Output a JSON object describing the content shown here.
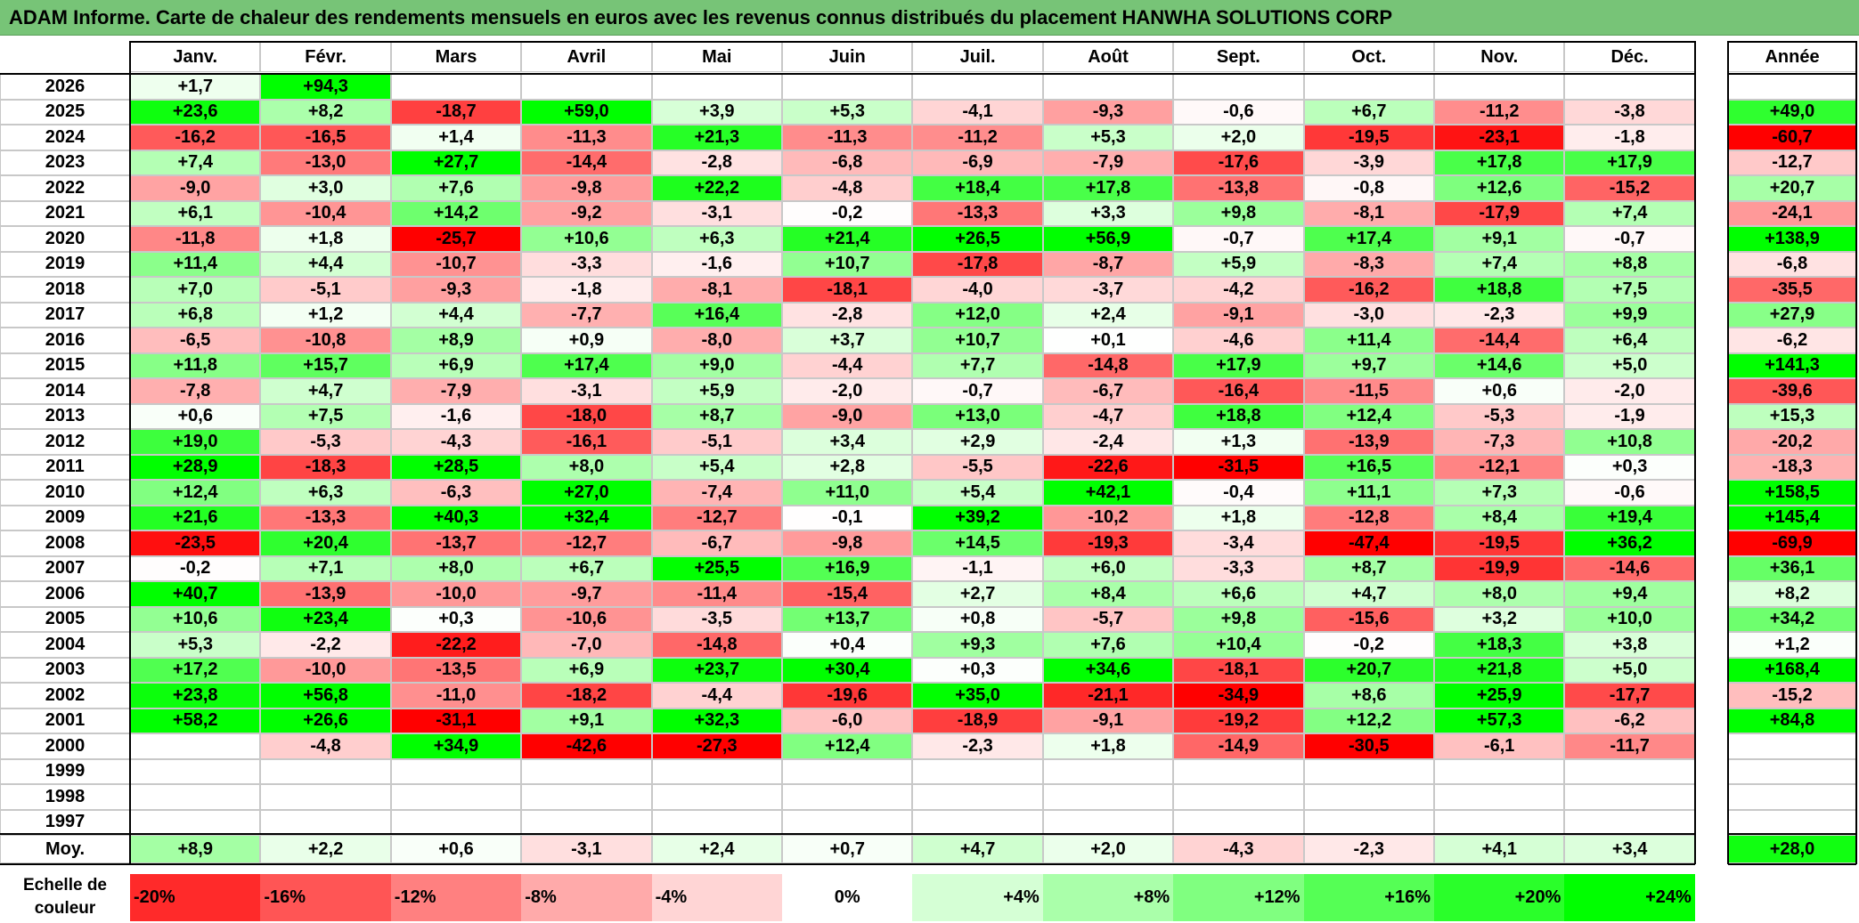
{
  "title": "ADAM Informe. Carte de chaleur des rendements mensuels en euros avec les revenus connus distribués du placement HANWHA SOLUTIONS CORP",
  "chart_data": {
    "type": "heatmap",
    "months": [
      "Janv.",
      "Févr.",
      "Mars",
      "Avril",
      "Mai",
      "Juin",
      "Juil.",
      "Août",
      "Sept.",
      "Oct.",
      "Nov.",
      "Déc."
    ],
    "year_header": "Année",
    "avg_label": "Moy.",
    "rows": [
      {
        "year": "2026",
        "values": [
          "+1,7",
          "+94,3",
          "",
          "",
          "",
          "",
          "",
          "",
          "",
          "",
          "",
          ""
        ],
        "annual": ""
      },
      {
        "year": "2025",
        "values": [
          "+23,6",
          "+8,2",
          "-18,7",
          "+59,0",
          "+3,9",
          "+5,3",
          "-4,1",
          "-9,3",
          "-0,6",
          "+6,7",
          "-11,2",
          "-3,8"
        ],
        "annual": "+49,0"
      },
      {
        "year": "2024",
        "values": [
          "-16,2",
          "-16,5",
          "+1,4",
          "-11,3",
          "+21,3",
          "-11,3",
          "-11,2",
          "+5,3",
          "+2,0",
          "-19,5",
          "-23,1",
          "-1,8"
        ],
        "annual": "-60,7"
      },
      {
        "year": "2023",
        "values": [
          "+7,4",
          "-13,0",
          "+27,7",
          "-14,4",
          "-2,8",
          "-6,8",
          "-6,9",
          "-7,9",
          "-17,6",
          "-3,9",
          "+17,8",
          "+17,9"
        ],
        "annual": "-12,7"
      },
      {
        "year": "2022",
        "values": [
          "-9,0",
          "+3,0",
          "+7,6",
          "-9,8",
          "+22,2",
          "-4,8",
          "+18,4",
          "+17,8",
          "-13,8",
          "-0,8",
          "+12,6",
          "-15,2"
        ],
        "annual": "+20,7"
      },
      {
        "year": "2021",
        "values": [
          "+6,1",
          "-10,4",
          "+14,2",
          "-9,2",
          "-3,1",
          "-0,2",
          "-13,3",
          "+3,3",
          "+9,8",
          "-8,1",
          "-17,9",
          "+7,4"
        ],
        "annual": "-24,1"
      },
      {
        "year": "2020",
        "values": [
          "-11,8",
          "+1,8",
          "-25,7",
          "+10,6",
          "+6,3",
          "+21,4",
          "+26,5",
          "+56,9",
          "-0,7",
          "+17,4",
          "+9,1",
          "-0,7"
        ],
        "annual": "+138,9"
      },
      {
        "year": "2019",
        "values": [
          "+11,4",
          "+4,4",
          "-10,7",
          "-3,3",
          "-1,6",
          "+10,7",
          "-17,8",
          "-8,7",
          "+5,9",
          "-8,3",
          "+7,4",
          "+8,8"
        ],
        "annual": "-6,8"
      },
      {
        "year": "2018",
        "values": [
          "+7,0",
          "-5,1",
          "-9,3",
          "-1,8",
          "-8,1",
          "-18,1",
          "-4,0",
          "-3,7",
          "-4,2",
          "-16,2",
          "+18,8",
          "+7,5"
        ],
        "annual": "-35,5"
      },
      {
        "year": "2017",
        "values": [
          "+6,8",
          "+1,2",
          "+4,4",
          "-7,7",
          "+16,4",
          "-2,8",
          "+12,0",
          "+2,4",
          "-9,1",
          "-3,0",
          "-2,3",
          "+9,9"
        ],
        "annual": "+27,9"
      },
      {
        "year": "2016",
        "values": [
          "-6,5",
          "-10,8",
          "+8,9",
          "+0,9",
          "-8,0",
          "+3,7",
          "+10,7",
          "+0,1",
          "-4,6",
          "+11,4",
          "-14,4",
          "+6,4"
        ],
        "annual": "-6,2"
      },
      {
        "year": "2015",
        "values": [
          "+11,8",
          "+15,7",
          "+6,9",
          "+17,4",
          "+9,0",
          "-4,4",
          "+7,7",
          "-14,8",
          "+17,9",
          "+9,7",
          "+14,6",
          "+5,0"
        ],
        "annual": "+141,3"
      },
      {
        "year": "2014",
        "values": [
          "-7,8",
          "+4,7",
          "-7,9",
          "-3,1",
          "+5,9",
          "-2,0",
          "-0,7",
          "-6,7",
          "-16,4",
          "-11,5",
          "+0,6",
          "-2,0"
        ],
        "annual": "-39,6"
      },
      {
        "year": "2013",
        "values": [
          "+0,6",
          "+7,5",
          "-1,6",
          "-18,0",
          "+8,7",
          "-9,0",
          "+13,0",
          "-4,7",
          "+18,8",
          "+12,4",
          "-5,3",
          "-1,9"
        ],
        "annual": "+15,3"
      },
      {
        "year": "2012",
        "values": [
          "+19,0",
          "-5,3",
          "-4,3",
          "-16,1",
          "-5,1",
          "+3,4",
          "+2,9",
          "-2,4",
          "+1,3",
          "-13,9",
          "-7,3",
          "+10,8"
        ],
        "annual": "-20,2"
      },
      {
        "year": "2011",
        "values": [
          "+28,9",
          "-18,3",
          "+28,5",
          "+8,0",
          "+5,4",
          "+2,8",
          "-5,5",
          "-22,6",
          "-31,5",
          "+16,5",
          "-12,1",
          "+0,3"
        ],
        "annual": "-18,3"
      },
      {
        "year": "2010",
        "values": [
          "+12,4",
          "+6,3",
          "-6,3",
          "+27,0",
          "-7,4",
          "+11,0",
          "+5,4",
          "+42,1",
          "-0,4",
          "+11,1",
          "+7,3",
          "-0,6"
        ],
        "annual": "+158,5"
      },
      {
        "year": "2009",
        "values": [
          "+21,6",
          "-13,3",
          "+40,3",
          "+32,4",
          "-12,7",
          "-0,1",
          "+39,2",
          "-10,2",
          "+1,8",
          "-12,8",
          "+8,4",
          "+19,4"
        ],
        "annual": "+145,4"
      },
      {
        "year": "2008",
        "values": [
          "-23,5",
          "+20,4",
          "-13,7",
          "-12,7",
          "-6,7",
          "-9,8",
          "+14,5",
          "-19,3",
          "-3,4",
          "-47,4",
          "-19,5",
          "+36,2"
        ],
        "annual": "-69,9"
      },
      {
        "year": "2007",
        "values": [
          "-0,2",
          "+7,1",
          "+8,0",
          "+6,7",
          "+25,5",
          "+16,9",
          "-1,1",
          "+6,0",
          "-3,3",
          "+8,7",
          "-19,9",
          "-14,6"
        ],
        "annual": "+36,1"
      },
      {
        "year": "2006",
        "values": [
          "+40,7",
          "-13,9",
          "-10,0",
          "-9,7",
          "-11,4",
          "-15,4",
          "+2,7",
          "+8,4",
          "+6,6",
          "+4,7",
          "+8,0",
          "+9,4"
        ],
        "annual": "+8,2"
      },
      {
        "year": "2005",
        "values": [
          "+10,6",
          "+23,4",
          "+0,3",
          "-10,6",
          "-3,5",
          "+13,7",
          "+0,8",
          "-5,7",
          "+9,8",
          "-15,6",
          "+3,2",
          "+10,0"
        ],
        "annual": "+34,2"
      },
      {
        "year": "2004",
        "values": [
          "+5,3",
          "-2,2",
          "-22,2",
          "-7,0",
          "-14,8",
          "+0,4",
          "+9,3",
          "+7,6",
          "+10,4",
          "-0,2",
          "+18,3",
          "+3,8"
        ],
        "annual": "+1,2"
      },
      {
        "year": "2003",
        "values": [
          "+17,2",
          "-10,0",
          "-13,5",
          "+6,9",
          "+23,7",
          "+30,4",
          "+0,3",
          "+34,6",
          "-18,1",
          "+20,7",
          "+21,8",
          "+5,0"
        ],
        "annual": "+168,4"
      },
      {
        "year": "2002",
        "values": [
          "+23,8",
          "+56,8",
          "-11,0",
          "-18,2",
          "-4,4",
          "-19,6",
          "+35,0",
          "-21,1",
          "-34,9",
          "+8,6",
          "+25,9",
          "-17,7"
        ],
        "annual": "-15,2"
      },
      {
        "year": "2001",
        "values": [
          "+58,2",
          "+26,6",
          "-31,1",
          "+9,1",
          "+32,3",
          "-6,0",
          "-18,9",
          "-9,1",
          "-19,2",
          "+12,2",
          "+57,3",
          "-6,2"
        ],
        "annual": "+84,8"
      },
      {
        "year": "2000",
        "values": [
          "",
          "-4,8",
          "+34,9",
          "-42,6",
          "-27,3",
          "+12,4",
          "-2,3",
          "+1,8",
          "-14,9",
          "-30,5",
          "-6,1",
          "-11,7"
        ],
        "annual": ""
      },
      {
        "year": "1999",
        "values": [
          "",
          "",
          "",
          "",
          "",
          "",
          "",
          "",
          "",
          "",
          "",
          ""
        ],
        "annual": ""
      },
      {
        "year": "1998",
        "values": [
          "",
          "",
          "",
          "",
          "",
          "",
          "",
          "",
          "",
          "",
          "",
          ""
        ],
        "annual": ""
      },
      {
        "year": "1997",
        "values": [
          "",
          "",
          "",
          "",
          "",
          "",
          "",
          "",
          "",
          "",
          "",
          ""
        ],
        "annual": ""
      }
    ],
    "averages": [
      "+8,9",
      "+2,2",
      "+0,6",
      "-3,1",
      "+2,4",
      "+0,7",
      "+4,7",
      "+2,0",
      "-4,3",
      "-2,3",
      "+4,1",
      "+3,4"
    ],
    "average_annual": "+28,0",
    "scale_label": "Echelle de couleur",
    "scale": [
      "-20%",
      "-16%",
      "-12%",
      "-8%",
      "-4%",
      "0%",
      "+4%",
      "+8%",
      "+12%",
      "+16%",
      "+20%",
      "+24%"
    ],
    "colors": {
      "negative_full": "#ff0000",
      "neutral": "#ffffff",
      "positive_full": "#00ff00",
      "title_bg": "#77c477"
    }
  }
}
